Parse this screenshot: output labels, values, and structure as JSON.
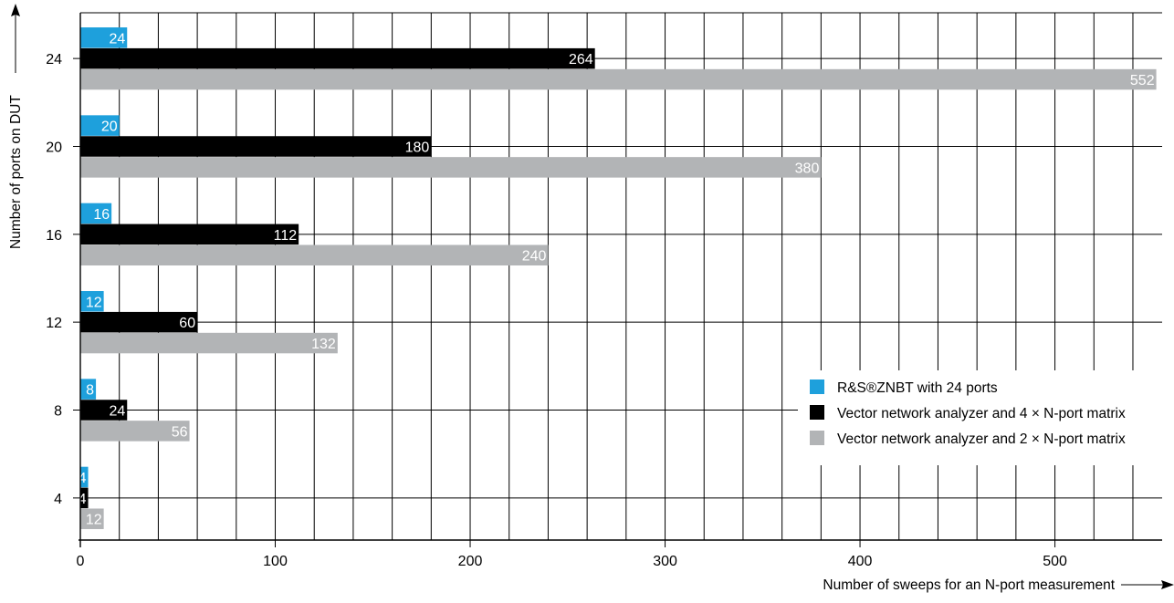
{
  "chart_data": {
    "type": "bar",
    "orientation": "horizontal",
    "categories": [
      "24",
      "20",
      "16",
      "12",
      "8",
      "4"
    ],
    "series": [
      {
        "name": "R&S®ZNBT with 24 ports",
        "color": "#1ea0dc",
        "values": [
          24,
          20,
          16,
          12,
          8,
          4
        ]
      },
      {
        "name": "Vector network analyzer and 4 × N-port matrix",
        "color": "#000000",
        "values": [
          264,
          180,
          112,
          60,
          24,
          4
        ]
      },
      {
        "name": "Vector network analyzer and 2 × N-port matrix",
        "color": "#b2b4b6",
        "values": [
          552,
          380,
          240,
          132,
          56,
          12
        ]
      }
    ],
    "xlabel": "Number of sweeps for an N-port measurement",
    "ylabel": "Number of ports on DUT",
    "xlim": [
      0,
      555
    ],
    "x_ticks": [
      0,
      100,
      200,
      300,
      400,
      500
    ],
    "y_ticks": [
      "24",
      "20",
      "16",
      "12",
      "8",
      "4"
    ],
    "grid": true,
    "legend": "lower-right",
    "data_labels": true
  }
}
